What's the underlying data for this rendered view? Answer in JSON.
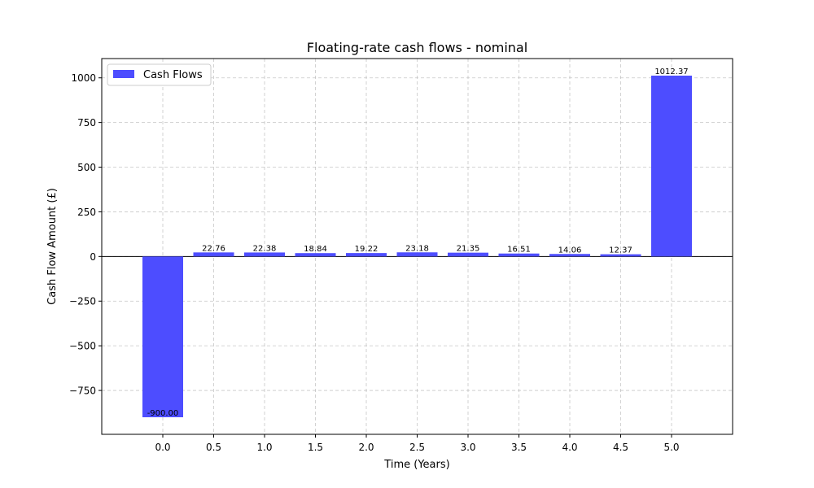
{
  "chart_data": {
    "type": "bar",
    "title": "Floating-rate cash flows - nominal",
    "xlabel": "Time (Years)",
    "ylabel": "Cash Flow Amount (£)",
    "x": [
      0.0,
      0.5,
      1.0,
      1.5,
      2.0,
      2.5,
      3.0,
      3.5,
      4.0,
      4.5,
      5.0
    ],
    "x_tick_labels": [
      "0.0",
      "0.5",
      "1.0",
      "1.5",
      "2.0",
      "2.5",
      "3.0",
      "3.5",
      "4.0",
      "4.5",
      "5.0"
    ],
    "series": [
      {
        "name": "Cash Flows",
        "color": "#4d4dff",
        "values": [
          -900.0,
          22.76,
          22.38,
          18.84,
          19.22,
          23.18,
          21.35,
          16.51,
          14.06,
          12.37,
          1012.37
        ],
        "value_labels": [
          "-900.00",
          "22.76",
          "22.38",
          "18.84",
          "19.22",
          "23.18",
          "21.35",
          "16.51",
          "14.06",
          "12.37",
          "1012.37"
        ]
      }
    ],
    "y_ticks": [
      -750,
      -500,
      -250,
      0,
      250,
      500,
      750,
      1000
    ],
    "y_tick_labels": [
      "−750",
      "−500",
      "−250",
      "0",
      "250",
      "500",
      "750",
      "1000"
    ],
    "xlim": [
      -0.6,
      5.6
    ],
    "ylim": [
      -995.6,
      1108.0
    ],
    "bar_width": 0.4,
    "grid": true,
    "legend_position": "upper-left",
    "zero_line": true
  }
}
